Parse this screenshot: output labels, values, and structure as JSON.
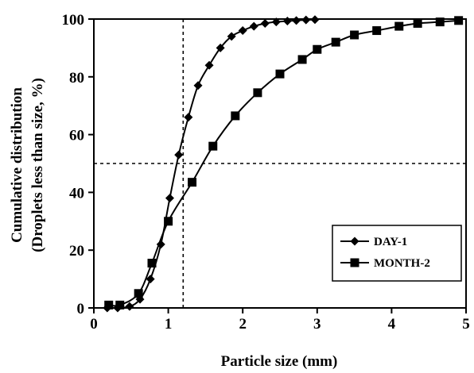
{
  "chart_data": {
    "type": "line",
    "xlabel": "Particle size (mm)",
    "ylabel_line1": "Cumulative distribution",
    "ylabel_line2": "(Droplets less than size, %)",
    "xlim": [
      0,
      5
    ],
    "ylim": [
      0,
      100
    ],
    "xticks": [
      "0",
      "1",
      "2",
      "3",
      "4",
      "5"
    ],
    "yticks": [
      "0",
      "20",
      "40",
      "60",
      "80",
      "100"
    ],
    "grid": false,
    "legend_position": "bottom-right",
    "reference_lines": {
      "x": 1.2,
      "y": 50
    },
    "series": [
      {
        "name": "DAY-1",
        "marker": "diamond",
        "x": [
          0.18,
          0.32,
          0.48,
          0.62,
          0.76,
          0.9,
          1.02,
          1.14,
          1.27,
          1.4,
          1.55,
          1.7,
          1.85,
          2.0,
          2.15,
          2.3,
          2.45,
          2.6,
          2.72,
          2.85,
          2.97
        ],
        "y": [
          0,
          0,
          0.5,
          3,
          10,
          22,
          38,
          53,
          66,
          77,
          84,
          90,
          94,
          96,
          97.5,
          98.5,
          99,
          99.3,
          99.5,
          99.7,
          99.8
        ]
      },
      {
        "name": "MONTH-2",
        "marker": "square",
        "x": [
          0.2,
          0.35,
          0.6,
          0.78,
          1.0,
          1.32,
          1.6,
          1.9,
          2.2,
          2.5,
          2.8,
          3.0,
          3.25,
          3.5,
          3.8,
          4.1,
          4.35,
          4.65,
          4.9
        ],
        "y": [
          1,
          1,
          5,
          15.5,
          30,
          43.5,
          56,
          66.5,
          74.5,
          81,
          86,
          89.5,
          92,
          94.5,
          96,
          97.5,
          98.5,
          99,
          99.5
        ]
      }
    ]
  }
}
